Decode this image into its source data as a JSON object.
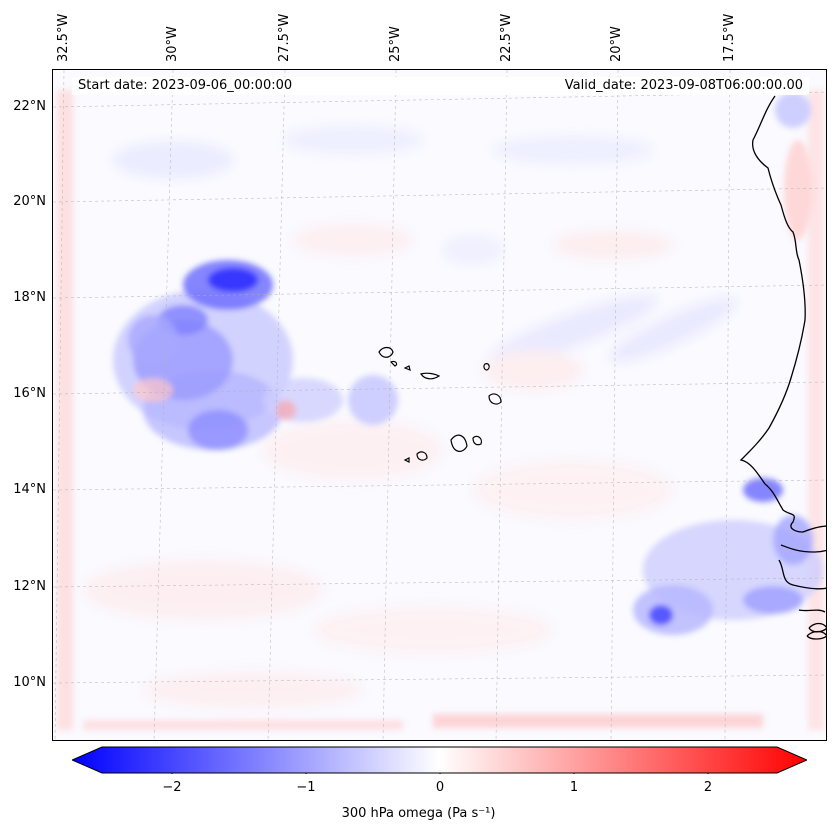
{
  "header": {
    "start_date": "Start date: 2023-09-06_00:00:00",
    "valid_date": "Valid_date: 2023-09-08T06:00:00.00"
  },
  "axes": {
    "longitude_labels": [
      "32.5°W",
      "30°W",
      "27.5°W",
      "25°W",
      "22.5°W",
      "20°W",
      "17.5°W"
    ],
    "latitude_labels": [
      "22°N",
      "20°N",
      "18°N",
      "16°N",
      "14°N",
      "12°N",
      "10°N"
    ]
  },
  "colorbar": {
    "label": "300 hPa omega (Pa s⁻¹)",
    "ticks": [
      "−2",
      "−1",
      "0",
      "1",
      "2"
    ],
    "range": [
      -2.7,
      2.7
    ],
    "negative_color": "#0000ff",
    "positive_color": "#ff0000"
  },
  "colors": {
    "coastline": "#000000",
    "gridline": "#b0b0b0",
    "background": "#fafaff"
  }
}
